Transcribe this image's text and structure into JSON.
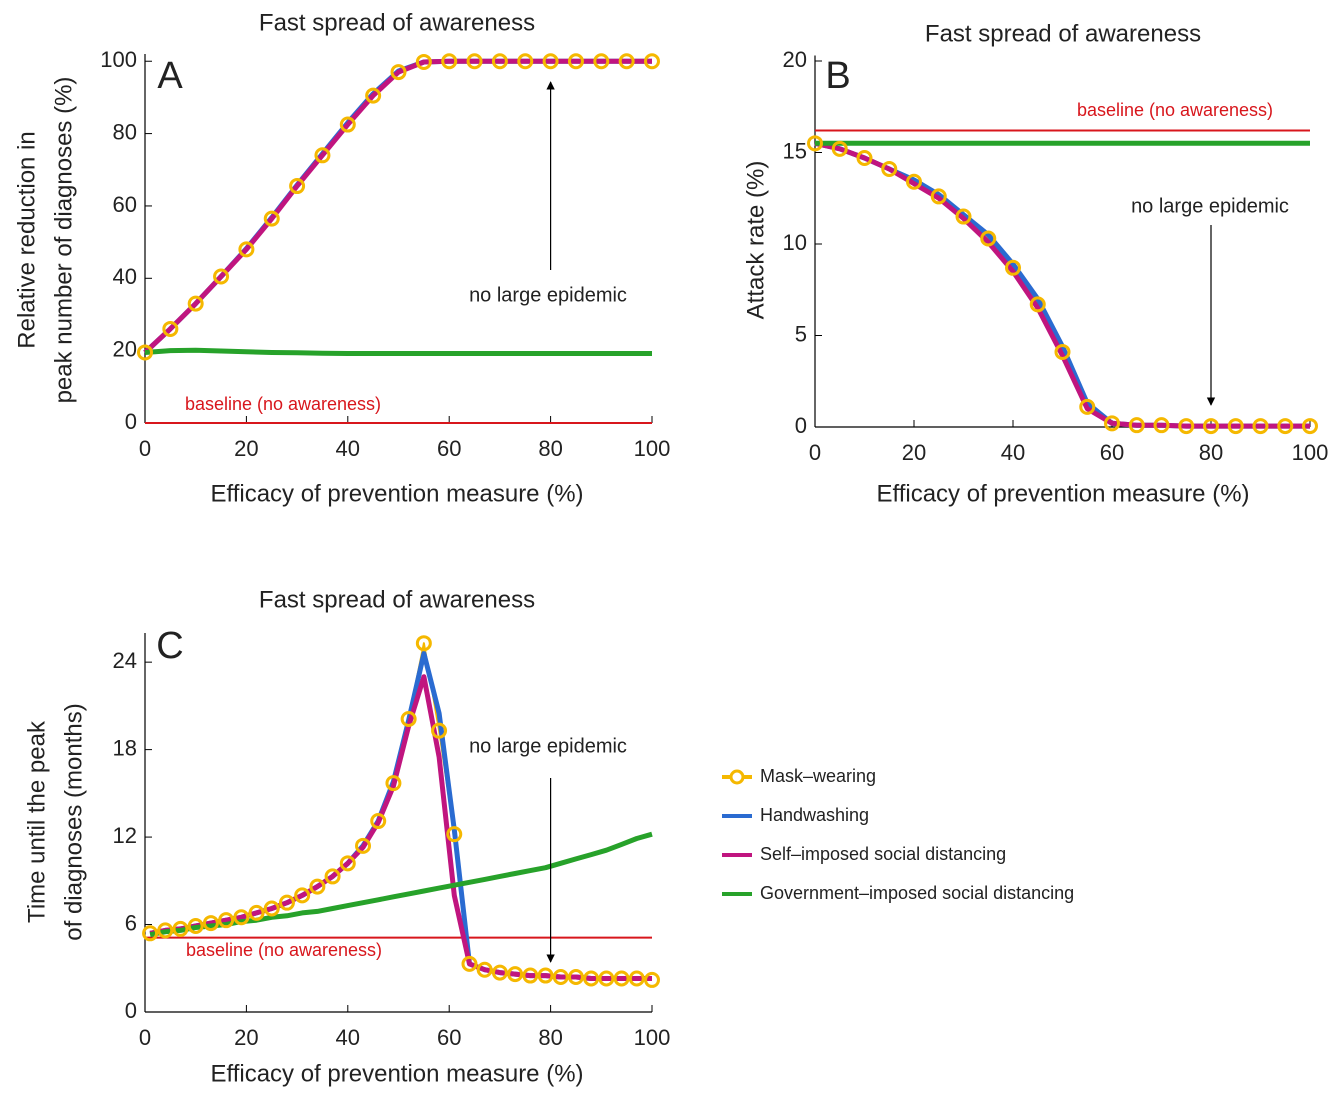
{
  "chart_data": [
    {
      "type": "line",
      "title": "Fast spread of awareness",
      "panel_label": "A",
      "xlabel": "Efficacy of prevention measure (%)",
      "ylabel": [
        "Relative reduction in",
        "peak number of diagnoses (%)"
      ],
      "xlim": [
        0,
        100
      ],
      "xticks": [
        0,
        20,
        40,
        60,
        80,
        100
      ],
      "ylim": [
        0,
        102
      ],
      "yticks": [
        0,
        20,
        40,
        60,
        80,
        100
      ],
      "x": [
        0,
        5,
        10,
        15,
        20,
        25,
        30,
        35,
        40,
        45,
        50,
        55,
        60,
        65,
        70,
        75,
        80,
        85,
        90,
        95,
        100
      ],
      "series": [
        {
          "color": "#f5b800",
          "markers": true,
          "values": [
            19.5,
            26,
            33,
            40.5,
            48,
            56.5,
            65.5,
            74,
            82.5,
            90.5,
            97,
            99.8,
            100,
            100,
            100,
            100,
            100,
            100,
            100,
            100,
            100
          ]
        },
        {
          "color": "#2a6bd1",
          "values": [
            19.5,
            26,
            33,
            40.5,
            48.2,
            56.8,
            65.8,
            74.4,
            83,
            91,
            97.3,
            99.8,
            100,
            100,
            100,
            100,
            100,
            100,
            100,
            100,
            100
          ]
        },
        {
          "color": "#c0157f",
          "values": [
            19.5,
            26,
            33,
            40.5,
            48,
            56.5,
            65.5,
            74,
            82.5,
            90.5,
            97,
            99.8,
            100,
            100,
            100,
            100,
            100,
            100,
            100,
            100,
            100
          ]
        },
        {
          "color": "#27a22a",
          "values": [
            19.5,
            20,
            20.1,
            19.9,
            19.7,
            19.5,
            19.4,
            19.3,
            19.2,
            19.2,
            19.2,
            19.2,
            19.2,
            19.2,
            19.2,
            19.2,
            19.2,
            19.2,
            19.2,
            19.2,
            19.2
          ]
        }
      ],
      "baseline": {
        "label": "baseline (no awareness)",
        "value": 0,
        "color": "#d8161c"
      },
      "annotation": {
        "text": "no large epidemic",
        "x": 80
      }
    },
    {
      "type": "line",
      "title": "Fast spread of awareness",
      "panel_label": "B",
      "xlabel": "Efficacy of prevention measure (%)",
      "ylabel": [
        "Attack rate (%)"
      ],
      "xlim": [
        0,
        100
      ],
      "xticks": [
        0,
        20,
        40,
        60,
        80,
        100
      ],
      "ylim": [
        0,
        20.3
      ],
      "yticks": [
        0,
        5,
        10,
        15,
        20
      ],
      "x": [
        0,
        5,
        10,
        15,
        20,
        25,
        30,
        35,
        40,
        45,
        50,
        55,
        60,
        65,
        70,
        75,
        80,
        85,
        90,
        95,
        100
      ],
      "series": [
        {
          "color": "#f5b800",
          "markers": true,
          "values": [
            15.5,
            15.2,
            14.7,
            14.1,
            13.4,
            12.6,
            11.5,
            10.3,
            8.7,
            6.7,
            4.1,
            1.1,
            0.2,
            0.1,
            0.1,
            0.05,
            0.05,
            0.05,
            0.05,
            0.05,
            0.05
          ]
        },
        {
          "color": "#2a6bd1",
          "values": [
            15.5,
            15.2,
            14.7,
            14.1,
            13.5,
            12.7,
            11.6,
            10.5,
            8.9,
            7,
            4.4,
            1.3,
            0.2,
            0.1,
            0.1,
            0.05,
            0.05,
            0.05,
            0.05,
            0.05,
            0.05
          ]
        },
        {
          "color": "#c0157f",
          "values": [
            15.5,
            15.2,
            14.7,
            14.1,
            13.3,
            12.5,
            11.4,
            10.1,
            8.5,
            6.5,
            3.9,
            1,
            0.2,
            0.1,
            0.1,
            0.05,
            0.05,
            0.05,
            0.05,
            0.05,
            0.05
          ]
        },
        {
          "color": "#27a22a",
          "values": [
            15.5,
            15.5,
            15.5,
            15.5,
            15.5,
            15.5,
            15.5,
            15.5,
            15.5,
            15.5,
            15.5,
            15.5,
            15.5,
            15.5,
            15.5,
            15.5,
            15.5,
            15.5,
            15.5,
            15.5,
            15.5
          ]
        }
      ],
      "baseline": {
        "label": "baseline (no awareness)",
        "value": 16.2,
        "color": "#d8161c"
      },
      "annotation": {
        "text": "no large epidemic",
        "x": 80
      }
    },
    {
      "type": "line",
      "title": "Fast spread of awareness",
      "panel_label": "C",
      "xlabel": "Efficacy of prevention measure (%)",
      "ylabel": [
        "Time until the peak",
        "of diagnoses (months)"
      ],
      "xlim": [
        0,
        100
      ],
      "xticks": [
        0,
        20,
        40,
        60,
        80,
        100
      ],
      "ylim": [
        0,
        26
      ],
      "yticks": [
        0,
        6,
        12,
        18,
        24
      ],
      "x": [
        1,
        4,
        7,
        10,
        13,
        16,
        19,
        22,
        25,
        28,
        31,
        34,
        37,
        40,
        43,
        46,
        49,
        52,
        55,
        58,
        61,
        64,
        67,
        70,
        73,
        76,
        79,
        82,
        85,
        88,
        91,
        94,
        97,
        100
      ],
      "series": [
        {
          "name": "Mask–wearing",
          "color": "#f5b800",
          "markers": true,
          "values": [
            5.4,
            5.6,
            5.7,
            5.9,
            6.1,
            6.3,
            6.5,
            6.8,
            7.1,
            7.5,
            8,
            8.6,
            9.3,
            10.2,
            11.4,
            13.1,
            15.7,
            20.1,
            25.3,
            19.3,
            12.2,
            3.3,
            2.9,
            2.7,
            2.6,
            2.5,
            2.5,
            2.4,
            2.4,
            2.3,
            2.3,
            2.3,
            2.3,
            2.2
          ]
        },
        {
          "name": "Handwashing",
          "color": "#2a6bd1",
          "values": [
            5.4,
            5.6,
            5.7,
            5.9,
            6.1,
            6.3,
            6.5,
            6.8,
            7.1,
            7.5,
            8,
            8.6,
            9.3,
            10.2,
            11.4,
            13.1,
            15.8,
            20,
            24.6,
            20.5,
            12.5,
            3.3,
            2.9,
            2.7,
            2.6,
            2.5,
            2.5,
            2.4,
            2.4,
            2.3,
            2.3,
            2.3,
            2.3,
            2.3
          ]
        },
        {
          "name": "Self–imposed social distancing",
          "color": "#c0157f",
          "values": [
            5.4,
            5.6,
            5.7,
            5.9,
            6.1,
            6.3,
            6.5,
            6.8,
            7.1,
            7.5,
            8,
            8.6,
            9.3,
            10.2,
            11.3,
            13,
            15.5,
            19.6,
            23,
            17.5,
            8,
            3.3,
            2.9,
            2.7,
            2.6,
            2.5,
            2.5,
            2.4,
            2.4,
            2.3,
            2.3,
            2.3,
            2.3,
            2.3
          ]
        },
        {
          "name": "Government–imposed social distancing",
          "color": "#27a22a",
          "values": [
            5.3,
            5.5,
            5.6,
            5.8,
            5.9,
            6,
            6.2,
            6.3,
            6.5,
            6.6,
            6.8,
            6.9,
            7.1,
            7.3,
            7.5,
            7.7,
            7.9,
            8.1,
            8.3,
            8.5,
            8.7,
            8.9,
            9.1,
            9.3,
            9.5,
            9.7,
            9.9,
            10.2,
            10.5,
            10.8,
            11.1,
            11.5,
            11.9,
            12.2
          ]
        }
      ],
      "baseline": {
        "label": "baseline (no awareness)",
        "value": 5.1,
        "color": "#d8161c"
      },
      "annotation": {
        "text": "no large epidemic",
        "x": 80
      },
      "legend": true
    }
  ]
}
